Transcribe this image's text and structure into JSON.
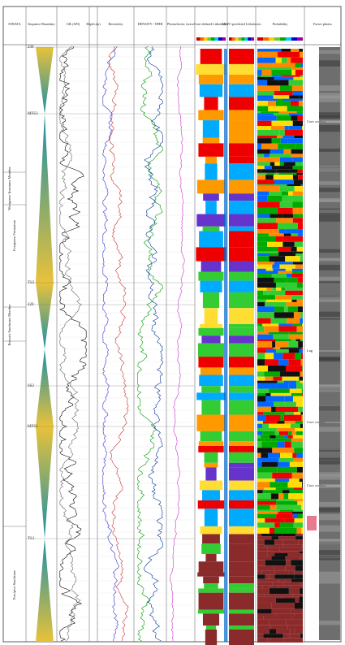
{
  "header": {
    "columns": [
      "STRATA",
      "Sequence Boundary",
      "GR (API)",
      "Depth (m)",
      "Resistivity",
      "DENSITY / NPHI",
      "Photoelectric factor",
      "Core-defined Lithofacies",
      "MLPC-predicted Lithofacies",
      "Probability",
      "Facies photos"
    ]
  },
  "strata": [
    "Evergreen Formation",
    "Precipice Sandstone",
    "Westgrove Ironstone Member",
    "Boxvale Sandstone Member"
  ],
  "surfaces": [
    "230",
    "MFS3",
    "TS3",
    "220",
    "SS2",
    "MFS1",
    "TS1"
  ],
  "photo_labels": [
    "Core surface",
    "Lag",
    "Core surface",
    "Core surface"
  ]
}
